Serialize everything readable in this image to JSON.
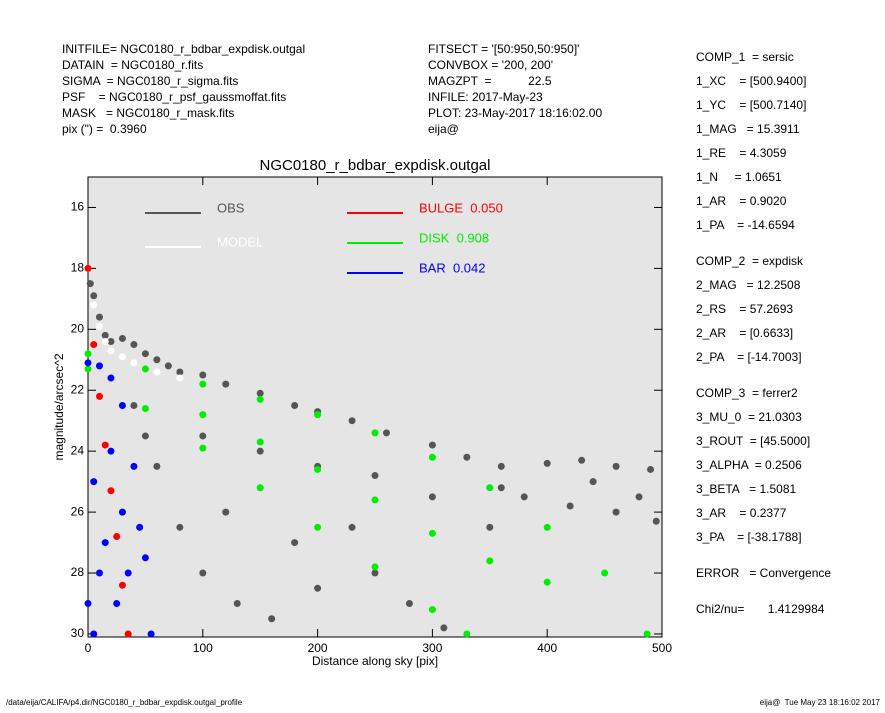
{
  "header": {
    "left": [
      "INITFILE= NGC0180_r_bdbar_expdisk.outgal",
      "DATAIN  = NGC0180_r.fits",
      "SIGMA  = NGC0180_r_sigma.fits",
      "PSF    = NGC0180_r_psf_gaussmoffat.fits",
      "MASK   = NGC0180_r_mask.fits",
      "pix (\") =  0.3960"
    ],
    "middle": [
      "FITSECT = '[50:950,50:950]'",
      "CONVBOX = '200, 200'",
      "MAGZPT  =           22.5",
      "INFILE: 2017-May-23",
      "PLOT: 23-May-2017 18:16:02.00",
      "eija@"
    ]
  },
  "parameters": [
    [
      "COMP_1  = sersic",
      "1_XC    = [500.9400]",
      "1_YC    = [500.7140]",
      "1_MAG   = 15.3911",
      "1_RE    = 4.3059",
      "1_N     = 1.0651",
      "1_AR    = 0.9020",
      "1_PA    = -14.6594"
    ],
    [
      "COMP_2  = expdisk",
      "2_MAG   = 12.2508",
      "2_RS    = 57.2693",
      "2_AR    = [0.6633]",
      "2_PA    = [-14.7003]"
    ],
    [
      "COMP_3  = ferrer2",
      "3_MU_0  = 21.0303",
      "3_ROUT  = [45.5000]",
      "3_ALPHA  = 0.2506",
      "3_BETA   = 1.5081",
      "3_AR    = 0.2377",
      "3_PA    = [-38.1788]"
    ],
    [
      "ERROR   = Convergence"
    ],
    [
      "Chi2/nu=       1.4129984"
    ]
  ],
  "footer": {
    "left": "/data/eija/CALIFA/p4.dir/NGC0180_r_bdbar_expdisk.outgal_profile",
    "right": "eija@  Tue May 23 18:16:02 2017"
  },
  "chart_data": {
    "type": "scatter",
    "title": "NGC0180_r_bdbar_expdisk.outgal",
    "xlabel": "Distance along sky [pix]",
    "ylabel": "magnitude/arcsec^2",
    "xlim": [
      0,
      500
    ],
    "ylim": [
      30.1,
      15.0
    ],
    "xticks": [
      0,
      100,
      200,
      300,
      400,
      500
    ],
    "yticks": [
      16,
      18,
      20,
      22,
      24,
      26,
      28,
      30
    ],
    "series": [
      {
        "name": "OBS",
        "color": "#555555",
        "x": [
          2,
          5,
          10,
          15,
          20,
          30,
          40,
          50,
          60,
          70,
          80,
          100,
          120,
          150,
          180,
          200,
          230,
          260,
          300,
          330,
          360,
          400,
          430,
          460,
          490,
          380,
          420,
          460,
          495,
          350,
          300,
          250,
          200,
          150,
          100,
          60,
          80,
          100,
          130,
          160,
          200,
          250,
          280,
          310,
          40,
          50,
          360,
          440,
          480,
          230,
          180,
          120
        ],
        "values": [
          18.5,
          18.9,
          19.6,
          20.2,
          20.4,
          20.3,
          20.5,
          20.8,
          21.0,
          21.2,
          21.4,
          21.5,
          21.8,
          22.1,
          22.5,
          22.7,
          23.0,
          23.4,
          23.8,
          24.2,
          24.5,
          24.4,
          24.3,
          24.5,
          24.6,
          25.5,
          25.8,
          26.0,
          26.3,
          26.5,
          25.5,
          24.8,
          24.5,
          24.0,
          23.5,
          24.5,
          26.5,
          28,
          29,
          29.5,
          28.5,
          28,
          29,
          29.8,
          22.5,
          23.5,
          25.2,
          25.0,
          25.5,
          26.5,
          27.0,
          26.0
        ]
      },
      {
        "name": "MODEL",
        "color": "#ffffff",
        "x": [
          0,
          5,
          10,
          15,
          20,
          30,
          40,
          60,
          80,
          100
        ],
        "values": [
          18,
          19.2,
          19.9,
          20.4,
          20.7,
          20.9,
          21.1,
          21.4,
          21.6,
          21.8
        ]
      },
      {
        "name": "BULGE  0.050",
        "color": "#ff0000",
        "x": [
          0,
          5,
          10,
          15,
          20,
          25,
          30,
          35
        ],
        "values": [
          18,
          20.5,
          22.2,
          23.8,
          25.3,
          26.8,
          28.4,
          30
        ]
      },
      {
        "name": "DISK  0.908",
        "color": "#00ee00",
        "x": [
          0,
          50,
          100,
          150,
          200,
          250,
          300,
          350,
          400,
          450,
          487,
          0,
          50,
          100,
          150,
          200,
          250,
          300,
          330,
          100,
          200,
          300,
          400,
          150,
          250,
          350
        ],
        "values": [
          20.8,
          21.3,
          21.8,
          22.3,
          22.8,
          23.4,
          24.2,
          25.2,
          26.5,
          28.0,
          30,
          21.3,
          22.6,
          23.9,
          25.2,
          26.5,
          27.8,
          29.2,
          30,
          22.8,
          24.6,
          26.7,
          28.3,
          23.7,
          25.6,
          27.6
        ]
      },
      {
        "name": "BAR  0.042",
        "color": "#0000ff",
        "x": [
          0,
          10,
          20,
          30,
          40,
          50,
          55,
          5,
          5,
          15,
          25,
          35,
          20,
          30,
          45,
          10,
          0
        ],
        "values": [
          21.1,
          21.2,
          21.6,
          22.5,
          24.5,
          27.5,
          30,
          25,
          30,
          27,
          29,
          28,
          24,
          26,
          26.5,
          28,
          29
        ]
      }
    ]
  }
}
